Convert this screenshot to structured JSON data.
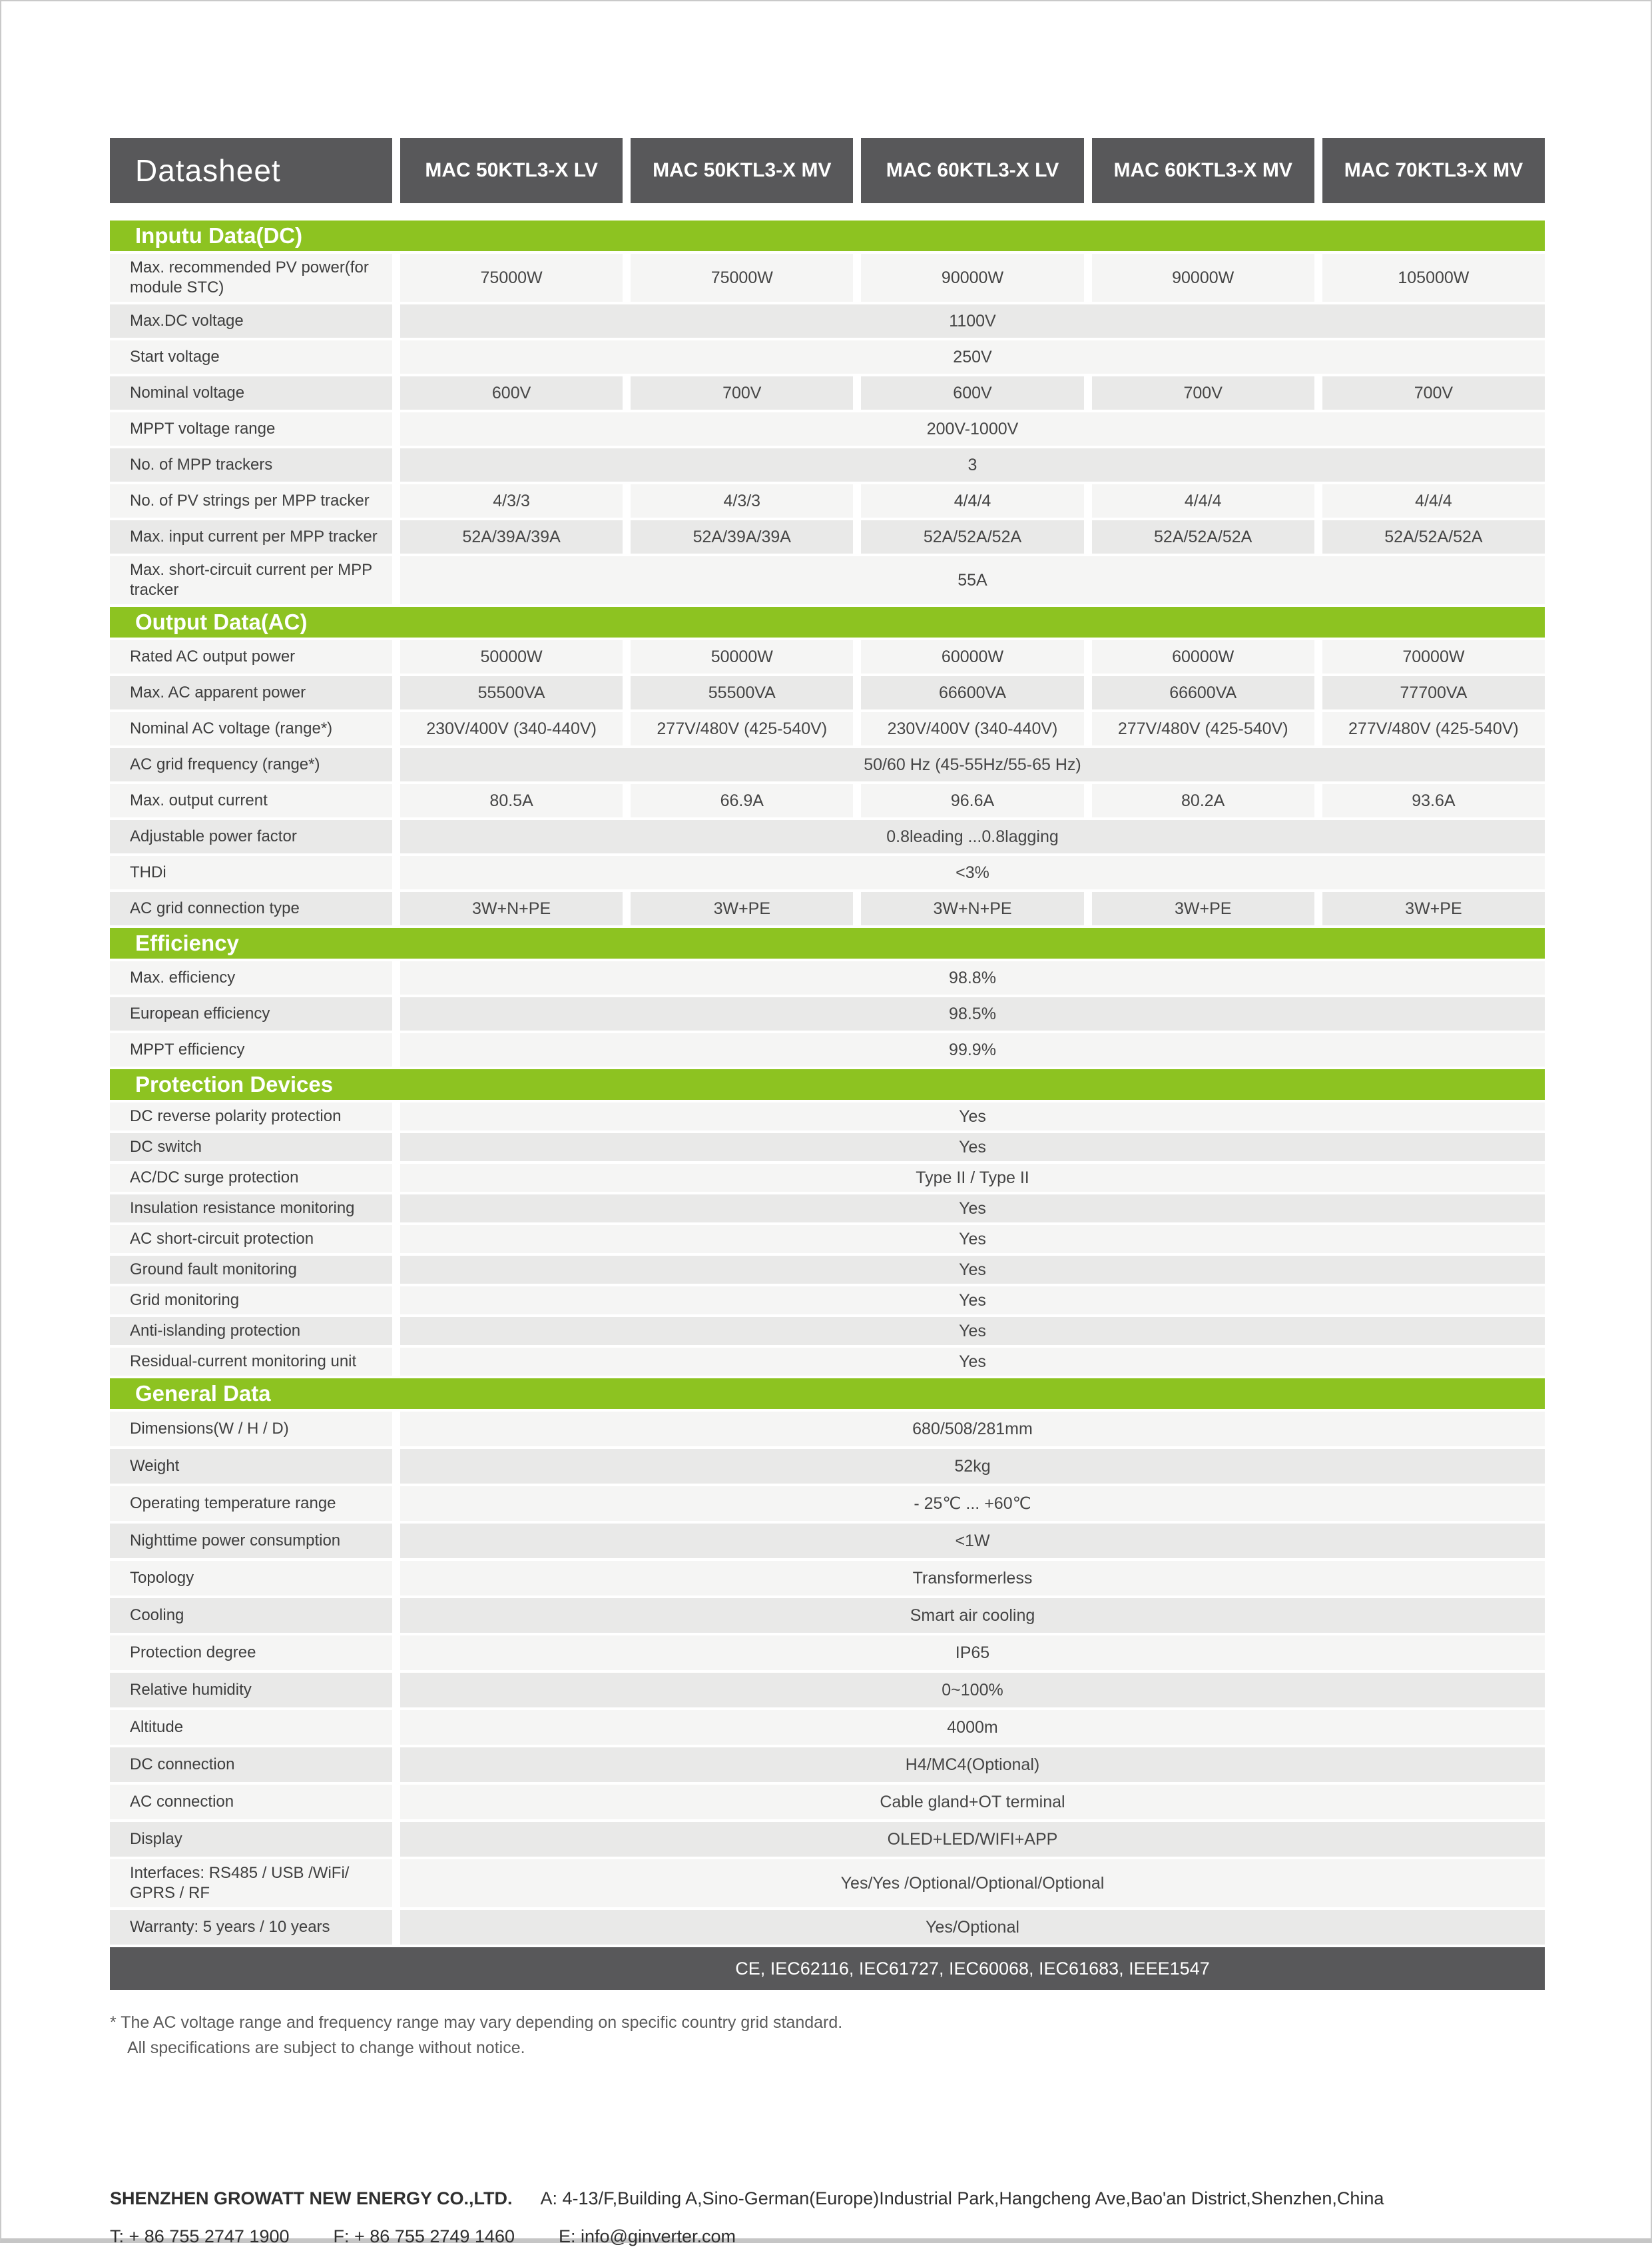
{
  "title": "Datasheet",
  "models": [
    "MAC 50KTL3-X LV",
    "MAC 50KTL3-X MV",
    "MAC 60KTL3-X LV",
    "MAC 60KTL3-X MV",
    "MAC 70KTL3-X MV"
  ],
  "colors": {
    "green": "#8dc321",
    "dark": "#58585a"
  },
  "sections": [
    {
      "title": "Inputu Data(DC)",
      "rows": [
        {
          "label": "Max. recommended PV power(for module STC)",
          "values": [
            "75000W",
            "75000W",
            "90000W",
            "90000W",
            "105000W"
          ]
        },
        {
          "label": "Max.DC voltage",
          "span": "1100V"
        },
        {
          "label": "Start voltage",
          "span": "250V"
        },
        {
          "label": "Nominal voltage",
          "values": [
            "600V",
            "700V",
            "600V",
            "700V",
            "700V"
          ]
        },
        {
          "label": "MPPT voltage range",
          "span": "200V-1000V"
        },
        {
          "label": "No. of MPP trackers",
          "span": "3"
        },
        {
          "label": "No. of PV strings per MPP tracker",
          "values": [
            "4/3/3",
            "4/3/3",
            "4/4/4",
            "4/4/4",
            "4/4/4"
          ]
        },
        {
          "label": "Max. input current per MPP tracker",
          "values": [
            "52A/39A/39A",
            "52A/39A/39A",
            "52A/52A/52A",
            "52A/52A/52A",
            "52A/52A/52A"
          ]
        },
        {
          "label": "Max. short-circuit current per MPP tracker",
          "span": "55A"
        }
      ]
    },
    {
      "title": "Output Data(AC)",
      "rows": [
        {
          "label": "Rated AC output power",
          "values": [
            "50000W",
            "50000W",
            "60000W",
            "60000W",
            "70000W"
          ]
        },
        {
          "label": "Max. AC apparent power",
          "values": [
            "55500VA",
            "55500VA",
            "66600VA",
            "66600VA",
            "77700VA"
          ]
        },
        {
          "label": "Nominal AC voltage (range*)",
          "values": [
            "230V/400V (340-440V)",
            "277V/480V (425-540V)",
            "230V/400V (340-440V)",
            "277V/480V (425-540V)",
            "277V/480V (425-540V)"
          ]
        },
        {
          "label": "AC grid frequency (range*)",
          "span": "50/60 Hz (45-55Hz/55-65 Hz)"
        },
        {
          "label": "Max. output current",
          "values": [
            "80.5A",
            "66.9A",
            "96.6A",
            "80.2A",
            "93.6A"
          ]
        },
        {
          "label": "Adjustable power factor",
          "span": "0.8leading ...0.8lagging"
        },
        {
          "label": "THDi",
          "span": "<3%"
        },
        {
          "label": "AC grid connection type",
          "values": [
            "3W+N+PE",
            "3W+PE",
            "3W+N+PE",
            "3W+PE",
            "3W+PE"
          ]
        }
      ]
    },
    {
      "title": "Efficiency",
      "rows": [
        {
          "label": "Max. efficiency",
          "span": "98.8%"
        },
        {
          "label": "European efficiency",
          "span": "98.5%"
        },
        {
          "label": "MPPT efficiency",
          "span": "99.9%"
        }
      ]
    },
    {
      "title": "Protection Devices",
      "rows": [
        {
          "label": "DC reverse polarity protection",
          "span": "Yes"
        },
        {
          "label": "DC switch",
          "span": "Yes"
        },
        {
          "label": "AC/DC surge protection",
          "span": "Type II / Type II"
        },
        {
          "label": "Insulation resistance monitoring",
          "span": "Yes"
        },
        {
          "label": "AC short-circuit protection",
          "span": "Yes"
        },
        {
          "label": "Ground fault monitoring",
          "span": "Yes"
        },
        {
          "label": "Grid monitoring",
          "span": "Yes"
        },
        {
          "label": "Anti-islanding protection",
          "span": "Yes"
        },
        {
          "label": "Residual-current monitoring unit",
          "span": "Yes"
        }
      ]
    },
    {
      "title": "General Data",
      "rows": [
        {
          "label": "Dimensions(W / H / D)",
          "span": "680/508/281mm"
        },
        {
          "label": "Weight",
          "span": "52kg"
        },
        {
          "label": "Operating temperature range",
          "span": "- 25℃ ... +60℃"
        },
        {
          "label": "Nighttime power consumption",
          "span": "<1W"
        },
        {
          "label": "Topology",
          "span": "Transformerless"
        },
        {
          "label": "Cooling",
          "span": "Smart air cooling"
        },
        {
          "label": "Protection degree",
          "span": "IP65"
        },
        {
          "label": "Relative humidity",
          "span": "0~100%"
        },
        {
          "label": "Altitude",
          "span": "4000m"
        },
        {
          "label": "DC connection",
          "span": "H4/MC4(Optional)"
        },
        {
          "label": "AC connection",
          "span": "Cable gland+OT terminal"
        },
        {
          "label": "Display",
          "span": "OLED+LED/WIFI+APP"
        },
        {
          "label": "Interfaces: RS485 / USB /WiFi/ GPRS / RF",
          "span": "Yes/Yes /Optional/Optional/Optional"
        },
        {
          "label": "Warranty: 5 years / 10 years",
          "span": "Yes/Optional"
        }
      ]
    }
  ],
  "certifications": "CE, IEC62116, IEC61727, IEC60068, IEC61683, IEEE1547",
  "footnote": {
    "line1": "* The AC voltage range and frequency range may vary depending on specific country grid standard.",
    "line2": "All specifications are subject to change without notice."
  },
  "footer": {
    "company": "SHENZHEN GROWATT NEW ENERGY CO.,LTD.",
    "address": "A: 4-13/F,Building A,Sino-German(Europe)Industrial Park,Hangcheng Ave,Bao'an District,Shenzhen,China",
    "tel": "T: + 86 755 2747 1900",
    "fax": "F: + 86 755 2749 1460",
    "email": "E: info@ginverter.com"
  }
}
